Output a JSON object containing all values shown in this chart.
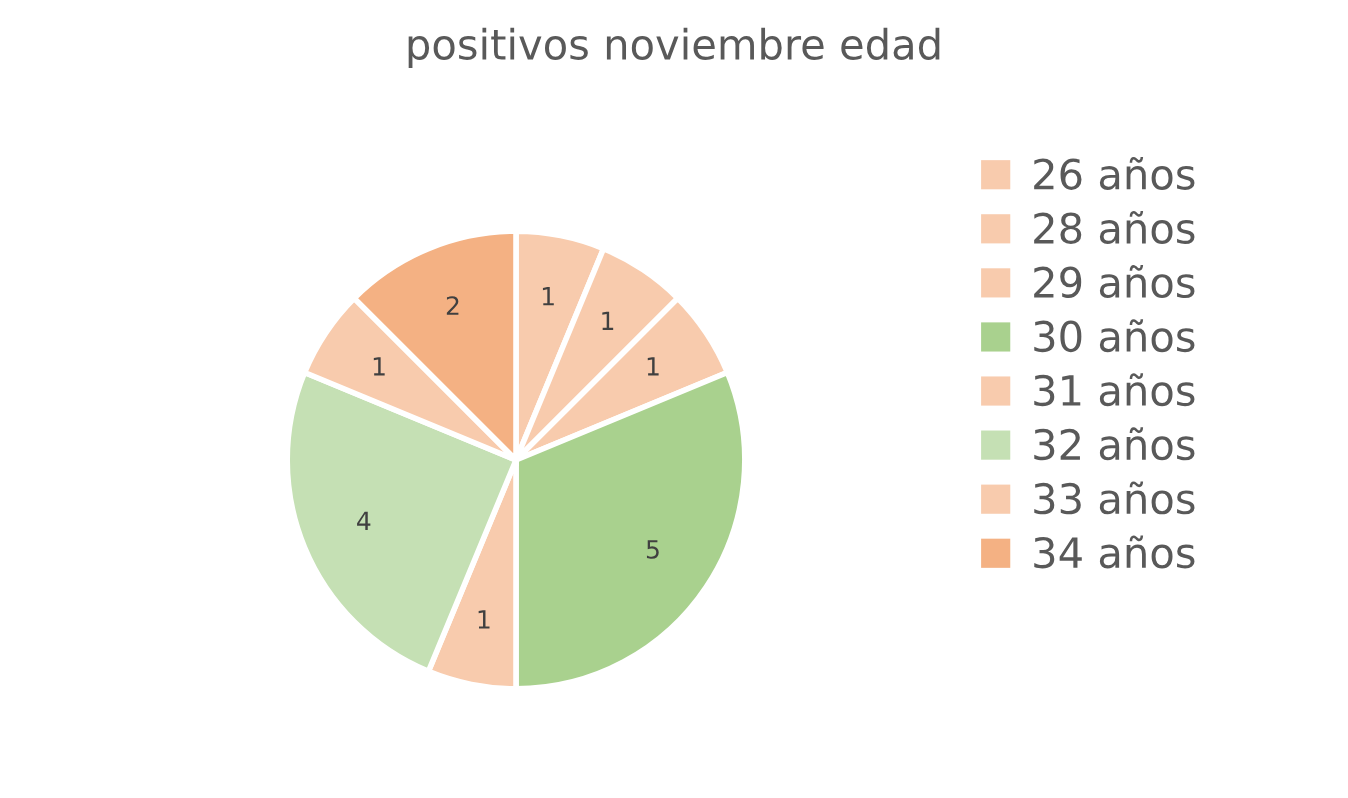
{
  "chart_data": {
    "type": "pie",
    "title": "positivos noviembre edad",
    "categories": [
      "26 años",
      "28 años",
      "29 años",
      "30 años",
      "31 años",
      "32 años",
      "33 años",
      "34 años"
    ],
    "values": [
      1,
      1,
      1,
      5,
      1,
      4,
      1,
      2
    ],
    "colors": [
      "#f8cbad",
      "#f8cbad",
      "#f8cbad",
      "#a9d18e",
      "#f8cbad",
      "#c5e0b4",
      "#f8cbad",
      "#f4b183"
    ],
    "data_labels": true,
    "legend": "right"
  }
}
